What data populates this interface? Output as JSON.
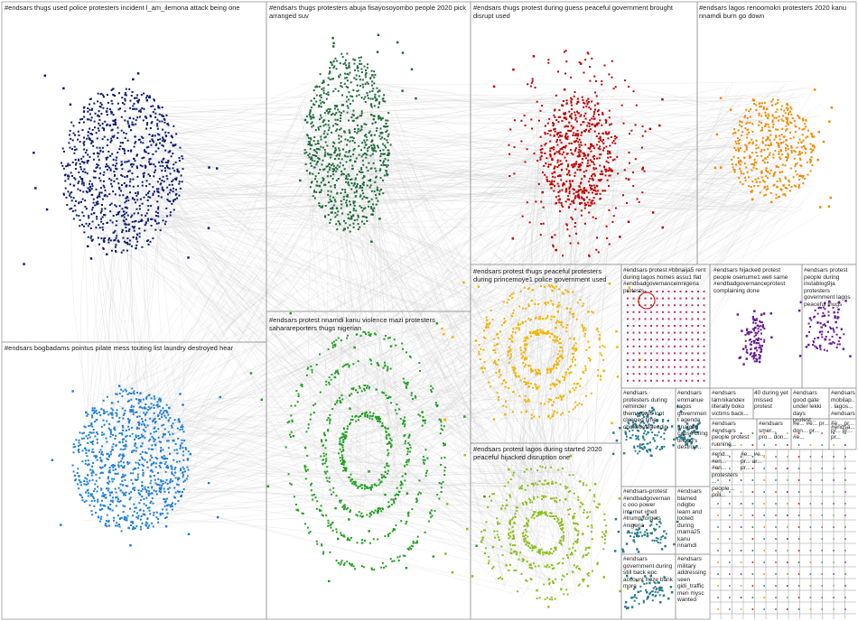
{
  "colors": {
    "edge": "#c8c8c8",
    "border": "#9a9a9a",
    "navy": "#0b1b6e",
    "darkgreen": "#1f6b3a",
    "red": "#c00000",
    "orange": "#f08a00",
    "lightblue": "#1e7fd6",
    "green": "#22a022",
    "yellow": "#f0b400",
    "yellowgreen": "#8cbf1f",
    "pink": "#c0306a",
    "purple": "#6a1a9a",
    "teal": "#2a7a8a"
  },
  "groups": [
    {
      "id": "g1",
      "label": "#endsars thugs used police protesters incident l_am_ilemona attack being one",
      "color": "navy"
    },
    {
      "id": "g2",
      "label": "#endsars thugs protesters abuja fisayosoyombo people 2020 pick arranged suv",
      "color": "darkgreen"
    },
    {
      "id": "g3",
      "label": "#endsars thugs protest during guess peaceful government brought disrupt used",
      "color": "red"
    },
    {
      "id": "g4",
      "label": "#endsars lagos renoomokri protesters 2020 kanu nnamdi burn go down",
      "color": "orange"
    },
    {
      "id": "g5",
      "label": "#endsars bogbadams pointus pilate mess touting list laundry destroyed hear",
      "color": "lightblue"
    },
    {
      "id": "g6",
      "label": "#endsars protest nnamdi kanu violence mazi protesters saharareporters thugs nigerian",
      "color": "green"
    },
    {
      "id": "g7",
      "label": "#endsars protest thugs peaceful protesters during princemoye1 police government used",
      "color": "yellow"
    },
    {
      "id": "g8",
      "label": "#endsars protest lagos during started 2020 peaceful hijacked disruption one",
      "color": "yellowgreen"
    },
    {
      "id": "g9",
      "label": "#endsars protest #bbnaija5 rent during lagos homes assu1 flat #endbadgovernanceinnigeria protests",
      "color": "pink"
    },
    {
      "id": "g10",
      "label": "#endsars hijacked protest people osenume1 well same #endbadgovernanceprotest complaining done",
      "color": "purple"
    },
    {
      "id": "g11",
      "label": "#endsars protest people during instablog9ja protesters government lagos peaceful thugs",
      "color": "purple"
    },
    {
      "id": "g12",
      "label": "#endsars protesters during reminder themselves loot cleaned time chukeoebi feedin",
      "color": "teal"
    },
    {
      "id": "g13",
      "label": "#endsars emmanue lagos government agenda anarchy cause bring tinubu's destroy...",
      "color": "teal"
    },
    {
      "id": "g14",
      "label": "#endsars lamnikandex literally boko victims back...",
      "color": "teal"
    },
    {
      "id": "g15",
      "label": "40 during yet missed protest",
      "color": "teal"
    },
    {
      "id": "g16",
      "label": "#endsars good gate under lekki days protest...",
      "color": "teal"
    },
    {
      "id": "g17",
      "label": "#endsars mobilap... lagos... #endsars... #endsa...",
      "color": "teal"
    },
    {
      "id": "g18",
      "label": "#endsars-protest #endbadgovernanc ooo power internet #hell #trump forgets #nigeria",
      "color": "teal"
    },
    {
      "id": "g19",
      "label": "#endsars blamed ndigbo learn and looted during mama25 kanu nnamdi",
      "color": "teal"
    },
    {
      "id": "g20",
      "label": "#endsars government during still back epc account froze bank more",
      "color": "teal"
    },
    {
      "id": "g21",
      "label": "#endsars military addressing seen gidi_traffic men mysc wanted",
      "color": "teal"
    },
    {
      "id": "g22",
      "label": "#endsars #endsars people protest running...",
      "color": "teal"
    },
    {
      "id": "g23",
      "label": "#end... #en... #en... protesters... people... poli...",
      "color": "teal"
    },
    {
      "id": "g24",
      "label": "#endsars smer... pro... don...",
      "color": "teal"
    },
    {
      "id": "g25",
      "label": "#e... #e... pr... don... pr... #e...",
      "color": "teal"
    },
    {
      "id": "g26",
      "label": "#e... pr... pr... pr... pr...",
      "color": "teal"
    },
    {
      "id": "g27",
      "label": "#e... #e... pr... ar... pr...",
      "color": "teal"
    }
  ]
}
